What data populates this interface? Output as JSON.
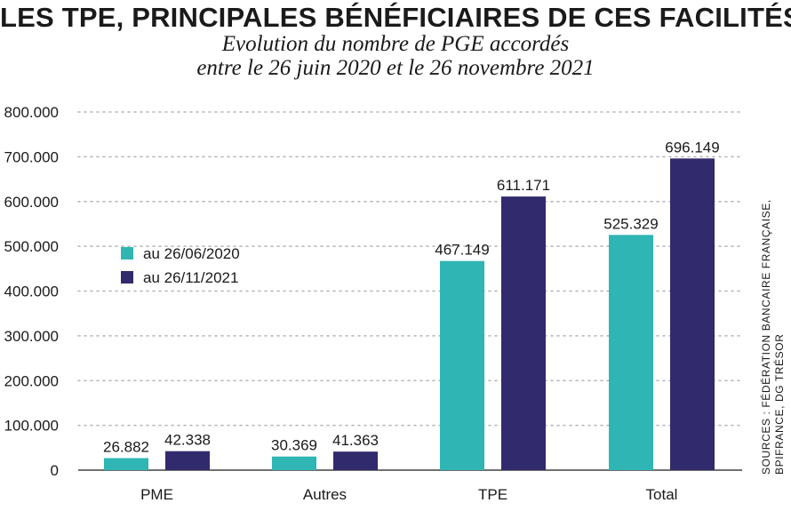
{
  "header": {
    "title": "LES TPE, PRINCIPALES BÉNÉFICIAIRES DE CES FACILITÉS",
    "subtitle_line1": "Evolution du nombre de PGE accordés",
    "subtitle_line2": "entre le 26 juin 2020 et le 26 novembre 2021"
  },
  "sources": {
    "line1": "SOURCES : FÉDÉRATION BANCAIRE FRANÇAISE,",
    "line2": "BPIFRANCE, DG TRÉSOR"
  },
  "colors": {
    "series1": "#2fb5b4",
    "series2": "#312a6c",
    "grid": "#b5b5b5"
  },
  "chart_data": {
    "type": "bar",
    "title": "LES TPE, PRINCIPALES BÉNÉFICIAIRES DE CES FACILITÉS",
    "subtitle": "Evolution du nombre de PGE accordés entre le 26 juin 2020 et le 26 novembre 2021",
    "categories": [
      "PME",
      "Autres",
      "TPE",
      "Total"
    ],
    "series": [
      {
        "name": "au 26/06/2020",
        "values": [
          26882,
          30369,
          467149,
          525329
        ],
        "labels": [
          "26.882",
          "30.369",
          "467.149",
          "525.329"
        ]
      },
      {
        "name": "au 26/11/2021",
        "values": [
          42338,
          41363,
          611171,
          696149
        ],
        "labels": [
          "42.338",
          "41.363",
          "611.171",
          "696.149"
        ]
      }
    ],
    "yticks": [
      0,
      100000,
      200000,
      300000,
      400000,
      500000,
      600000,
      700000,
      800000
    ],
    "ytick_labels": [
      "0",
      "100.000",
      "200.000",
      "300.000",
      "400.000",
      "500.000",
      "600.000",
      "700.000",
      "800.000"
    ],
    "ylim": [
      0,
      800000
    ],
    "xlabel": "",
    "ylabel": "",
    "grid": true,
    "legend_position": "left"
  }
}
